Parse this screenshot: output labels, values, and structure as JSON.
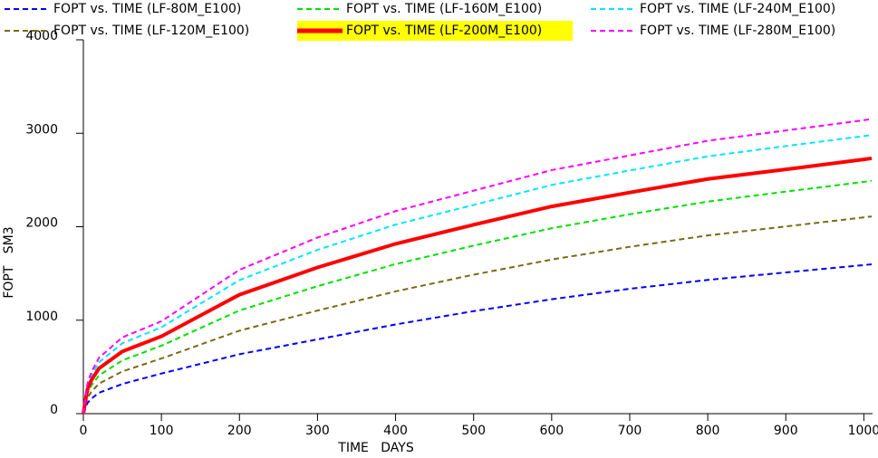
{
  "chart_data": {
    "type": "line",
    "x_label": "TIME   DAYS",
    "y_label": "FOPT   SM3",
    "x": [
      0,
      5,
      10,
      20,
      50,
      100,
      200,
      300,
      400,
      500,
      600,
      700,
      800,
      900,
      1000,
      1010
    ],
    "xlim": [
      0,
      1010
    ],
    "xticks": [
      0,
      100,
      200,
      300,
      400,
      500,
      600,
      700,
      800,
      900,
      1000
    ],
    "ylim": [
      0,
      4000
    ],
    "yticks": [
      0,
      1000,
      2000,
      3000,
      4000
    ],
    "series": [
      {
        "name": "FOPT vs. TIME (LF-80M_E100)",
        "color": "#0000ff",
        "style": "dashed",
        "values": [
          0,
          111,
          159,
          223,
          318,
          429,
          636,
          795,
          954,
          1097,
          1224,
          1336,
          1431,
          1511,
          1590,
          1598
        ]
      },
      {
        "name": "FOPT vs. TIME (LF-160M_E100)",
        "color": "#00e000",
        "style": "dashed",
        "values": [
          0,
          211,
          298,
          409,
          570,
          727,
          1104,
          1364,
          1600,
          1798,
          1984,
          2133,
          2269,
          2376,
          2480,
          2492
        ]
      },
      {
        "name": "FOPT vs. TIME (LF-240M_E100)",
        "color": "#00e5ff",
        "style": "dashed",
        "values": [
          0,
          288,
          404,
          549,
          754,
          924,
          1429,
          1752,
          2023,
          2233,
          2447,
          2602,
          2753,
          2863,
          2970,
          2982
        ]
      },
      {
        "name": "FOPT vs. TIME (LF-120M_E100)",
        "color": "#7a6a14",
        "style": "dashed",
        "values": [
          0,
          164,
          231,
          321,
          452,
          590,
          888,
          1103,
          1308,
          1487,
          1649,
          1785,
          1907,
          2003,
          2100,
          2110
        ]
      },
      {
        "name": "FOPT vs. TIME (LF-200M_E100)",
        "color": "#ff0000",
        "style": "solid",
        "highlight": "#ffff00",
        "values": [
          0,
          253,
          354,
          484,
          666,
          827,
          1273,
          1564,
          1817,
          2021,
          2217,
          2366,
          2511,
          2614,
          2720,
          2732
        ]
      },
      {
        "name": "FOPT vs. TIME (LF-280M_E100)",
        "color": "#ff00ff",
        "style": "dashed",
        "values": [
          0,
          314,
          440,
          597,
          816,
          989,
          1539,
          1884,
          2167,
          2386,
          2606,
          2763,
          2920,
          3030,
          3140,
          3153
        ]
      }
    ]
  }
}
